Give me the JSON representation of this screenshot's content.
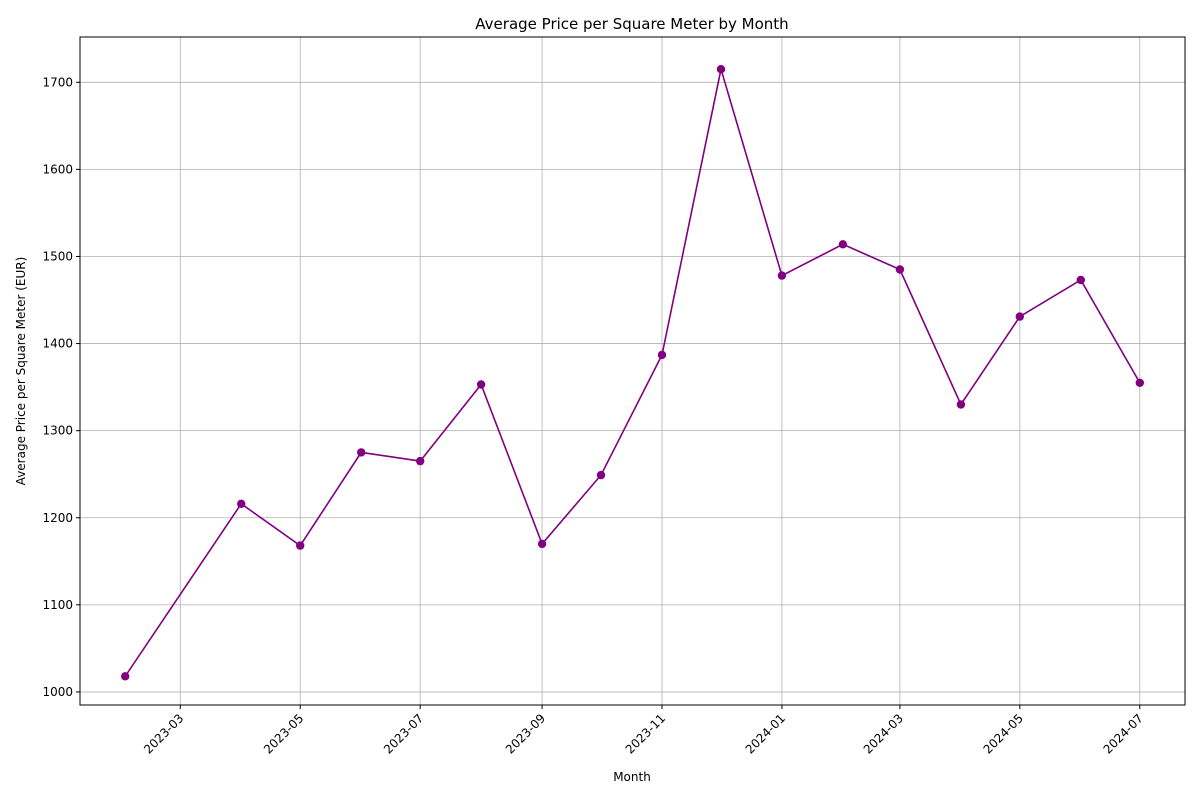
{
  "chart_data": {
    "type": "line",
    "title": "Average Price per Square Meter by Month",
    "xlabel": "Month",
    "ylabel": "Average Price per Square Meter (EUR)",
    "x": [
      "2023-02-01",
      "2023-04-01",
      "2023-05-01",
      "2023-06-01",
      "2023-07-01",
      "2023-08-01",
      "2023-09-01",
      "2023-10-01",
      "2023-11-01",
      "2023-12-01",
      "2024-01-01",
      "2024-02-01",
      "2024-03-01",
      "2024-04-01",
      "2024-05-01",
      "2024-06-01",
      "2024-07-01"
    ],
    "series": [
      {
        "values": [
          1018,
          1216,
          1168,
          1275,
          1265,
          1353,
          1170,
          1249,
          1387,
          1715,
          1478,
          1514,
          1485,
          1330,
          1431,
          1473,
          1355
        ]
      }
    ],
    "xlim": [
      "2023-01-09",
      "2024-07-24"
    ],
    "ylim": [
      985,
      1752
    ],
    "x_ticks": [
      "2023-03",
      "2023-05",
      "2023-07",
      "2023-09",
      "2023-11",
      "2024-01",
      "2024-03",
      "2024-05",
      "2024-07"
    ],
    "y_ticks": [
      1000,
      1100,
      1200,
      1300,
      1400,
      1500,
      1600,
      1700
    ],
    "grid": true,
    "line_color": "#800080",
    "marker": "circle"
  }
}
